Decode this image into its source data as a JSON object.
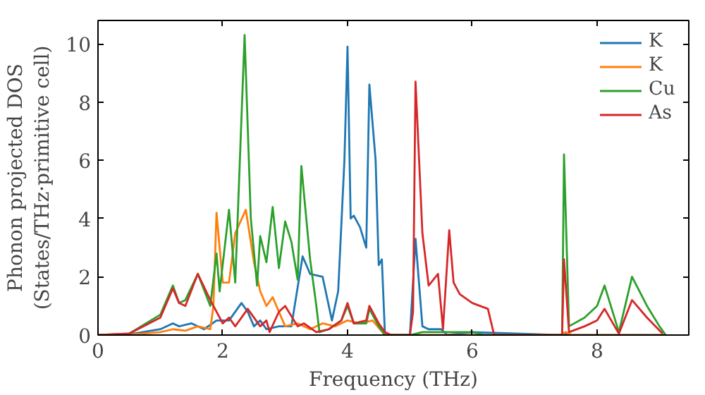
{
  "chart_data": {
    "type": "line",
    "xlabel": "Frequency (THz)",
    "ylabel": "Phonon projected DOS\n(States/THz·primitive cell)",
    "xlim": [
      0,
      9.47
    ],
    "ylim": [
      0,
      10.8
    ],
    "xticks": [
      0,
      2,
      4,
      6,
      8
    ],
    "yticks": [
      0,
      2,
      4,
      6,
      8,
      10
    ],
    "grid": false,
    "legend": "top right",
    "series": [
      {
        "name": "K",
        "color": "#1f77b4",
        "x": [
          0,
          0.5,
          1.0,
          1.2,
          1.3,
          1.5,
          1.7,
          1.9,
          2.1,
          2.3,
          2.4,
          2.5,
          2.6,
          2.7,
          2.9,
          3.1,
          3.28,
          3.4,
          3.6,
          3.75,
          3.85,
          3.95,
          4.0,
          4.05,
          4.1,
          4.2,
          4.3,
          4.35,
          4.45,
          4.5,
          4.55,
          4.6,
          5.0,
          5.09,
          5.2,
          5.3,
          5.5,
          5.6,
          6.0,
          7.4,
          7.5,
          7.6,
          9.1
        ],
        "values": [
          0,
          0.02,
          0.2,
          0.4,
          0.3,
          0.4,
          0.2,
          0.5,
          0.5,
          1.1,
          0.8,
          0.3,
          0.5,
          0.2,
          0.3,
          0.3,
          2.7,
          2.1,
          2.0,
          0.5,
          1.5,
          6.0,
          9.9,
          4.0,
          4.1,
          3.7,
          3.0,
          8.6,
          6.0,
          2.4,
          2.6,
          0,
          0,
          3.3,
          0.3,
          0.2,
          0.2,
          0,
          0.1,
          0,
          0.05,
          0,
          0
        ]
      },
      {
        "name": "K",
        "color": "#ff7f0e",
        "x": [
          0,
          0.5,
          1.0,
          1.2,
          1.4,
          1.6,
          1.8,
          1.85,
          1.9,
          2.0,
          2.1,
          2.2,
          2.37,
          2.5,
          2.6,
          2.7,
          2.8,
          3.0,
          3.2,
          3.4,
          3.6,
          3.8,
          4.0,
          4.2,
          4.4,
          4.6,
          7.4,
          7.5,
          7.6,
          9.1
        ],
        "values": [
          0,
          0.01,
          0.1,
          0.2,
          0.15,
          0.3,
          0.2,
          1.0,
          4.2,
          1.8,
          1.8,
          3.5,
          4.3,
          2.5,
          1.5,
          1.0,
          1.3,
          0.3,
          0.4,
          0.2,
          0.4,
          0.3,
          0.5,
          0.4,
          0.5,
          0,
          0,
          0.1,
          0,
          0
        ]
      },
      {
        "name": "Cu",
        "color": "#2ca02c",
        "x": [
          0,
          0.5,
          1.0,
          1.2,
          1.3,
          1.4,
          1.6,
          1.8,
          1.9,
          1.95,
          2.1,
          2.2,
          2.35,
          2.45,
          2.55,
          2.6,
          2.7,
          2.8,
          2.9,
          3.0,
          3.1,
          3.2,
          3.26,
          3.4,
          3.5,
          3.55,
          3.7,
          3.9,
          4.0,
          4.1,
          4.3,
          4.35,
          4.5,
          4.6,
          5.0,
          5.2,
          6.0,
          6.2,
          7.44,
          7.47,
          7.55,
          7.8,
          8.0,
          8.12,
          8.35,
          8.56,
          8.8,
          9.0,
          9.1
        ],
        "values": [
          0,
          0.05,
          0.7,
          1.7,
          1.1,
          1.2,
          2.1,
          1.0,
          2.8,
          1.5,
          4.3,
          1.8,
          10.3,
          4.0,
          1.7,
          3.4,
          2.5,
          4.4,
          2.3,
          3.9,
          3.2,
          1.9,
          5.8,
          2.6,
          1.0,
          0.1,
          0.2,
          0.5,
          1.0,
          0.4,
          0.4,
          0.9,
          0.3,
          0,
          0,
          0.1,
          0.1,
          0,
          0,
          6.2,
          0.3,
          0.6,
          1.0,
          1.7,
          0.1,
          2.0,
          1.0,
          0.3,
          0
        ]
      },
      {
        "name": "As",
        "color": "#d62728",
        "x": [
          0,
          0.5,
          1.0,
          1.2,
          1.3,
          1.4,
          1.6,
          1.8,
          2.0,
          2.1,
          2.2,
          2.4,
          2.6,
          2.7,
          2.75,
          2.9,
          3.0,
          3.2,
          3.3,
          3.5,
          3.7,
          3.9,
          4.0,
          4.1,
          4.3,
          4.35,
          4.5,
          4.6,
          4.7,
          5.0,
          5.05,
          5.09,
          5.2,
          5.3,
          5.45,
          5.53,
          5.63,
          5.7,
          5.8,
          6.0,
          6.25,
          6.35,
          7.44,
          7.47,
          7.55,
          7.8,
          8.0,
          8.12,
          8.35,
          8.56,
          8.8,
          9.05
        ],
        "values": [
          0,
          0.05,
          0.6,
          1.6,
          1.1,
          1.0,
          2.1,
          1.2,
          0.4,
          0.6,
          0.3,
          0.9,
          0.3,
          0.5,
          0.1,
          0.8,
          1.0,
          0.3,
          0.4,
          0.1,
          0.2,
          0.5,
          1.1,
          0.4,
          0.5,
          1.0,
          0.4,
          0.1,
          0,
          0,
          0.8,
          8.7,
          3.5,
          1.7,
          2.1,
          0.2,
          3.6,
          1.8,
          1.4,
          1.1,
          0.9,
          0,
          0,
          2.6,
          0.1,
          0.3,
          0.5,
          0.9,
          0.05,
          1.2,
          0.6,
          0.05
        ]
      }
    ]
  }
}
